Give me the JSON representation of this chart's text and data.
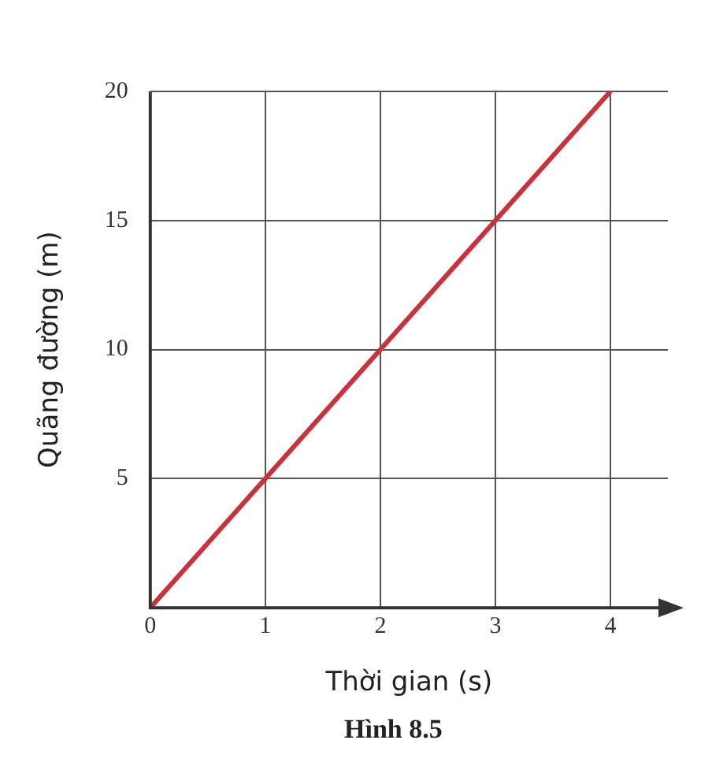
{
  "chart_data": {
    "type": "line",
    "xlabel": "Thời gian (s)",
    "ylabel": "Quãng đường (m)",
    "annotations": [
      "Hình 8.5"
    ],
    "x": [
      0,
      4
    ],
    "series": [
      {
        "color": "#c8323c",
        "values": [
          0,
          20
        ]
      }
    ],
    "xlim": [
      0,
      4.5
    ],
    "xticks": [
      0,
      1,
      2,
      3,
      4
    ],
    "ylim": [
      0,
      20
    ],
    "yticks": [
      {
        "value": 0,
        "label": null
      },
      5,
      10,
      15,
      20
    ],
    "grid": true,
    "legend": false,
    "marker": "none",
    "line_style": "solid"
  }
}
